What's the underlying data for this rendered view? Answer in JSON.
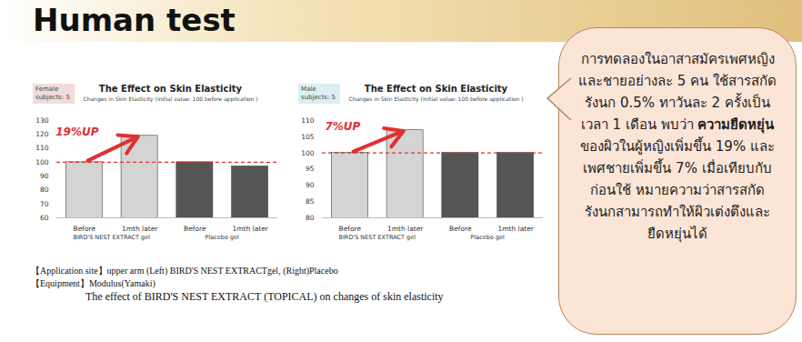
{
  "title": "Human test",
  "chart_data": [
    {
      "type": "bar",
      "subject_label": "Female subjects: 5",
      "title": "The Effect on Skin Elasticity",
      "subtitle": "Changes in Skin Elasticity (initial value: 100 before application )",
      "categories": [
        "Before",
        "1mth later",
        "Before",
        "1mth later"
      ],
      "groups": [
        "BIRD'S NEST EXTRACT gel",
        "Placebo gel"
      ],
      "values": [
        100,
        119,
        100,
        97
      ],
      "colors": [
        "#d4d4d4",
        "#d4d4d4",
        "#555555",
        "#555555"
      ],
      "ylim": [
        60,
        130
      ],
      "yticks": [
        60,
        70,
        80,
        90,
        100,
        110,
        120,
        130
      ],
      "reference_value": 100,
      "annotation": "19%UP",
      "grid": false
    },
    {
      "type": "bar",
      "subject_label": "Male subjects: 5",
      "title": "The Effect on Skin Elasticity",
      "subtitle": "Changes in Skin Elasticity (initial value: 100 before application )",
      "categories": [
        "Before",
        "1mth later",
        "Before",
        "1mth later"
      ],
      "groups": [
        "BIRD'S NEST EXTRACT gel",
        "Placebo gel"
      ],
      "values": [
        100,
        107,
        100,
        100
      ],
      "colors": [
        "#d4d4d4",
        "#d4d4d4",
        "#555555",
        "#555555"
      ],
      "ylim": [
        80,
        110
      ],
      "yticks": [
        80,
        85,
        90,
        95,
        100,
        105,
        110
      ],
      "reference_value": 100,
      "annotation": "7%UP",
      "grid": false
    }
  ],
  "notes": [
    "【Application site】upper arm    (Left) BIRD'S NEST EXTRACTgel, (Right)Placebo",
    "【Equipment】Modulus(Yamaki)",
    "The effect of BIRD'S NEST EXTRACT (TOPICAL) on changes of skin elasticity"
  ],
  "callout": {
    "text_before": "การทดลองในอาสาสมัครเพศหญิงและชายอย่างละ 5 คน ใช้สารสกัดรังนก 0.5% ทาวันละ 2 ครั้งเป็นเวลา 1 เดือน พบว่า ",
    "text_bold": "ความยืดหยุ่น",
    "text_after": "ของผิวในผู้หญิงเพิ่มขึ้น 19% และเพศชายเพิ่มขึ้น 7% เมื่อเทียบกับก่อนใช้ หมายความว่าสารสกัดรังนกสามารถทำให้ผิวเต่งตึงและยืดหยุ่นได้"
  }
}
